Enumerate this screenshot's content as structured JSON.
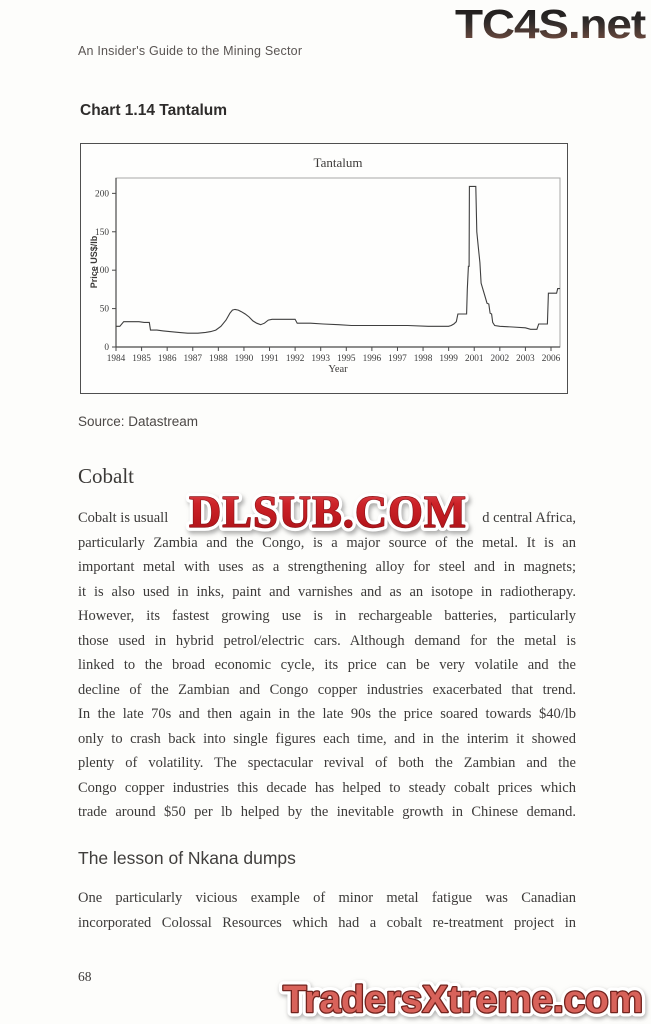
{
  "page": {
    "running_header": "An Insider's Guide to the Mining Sector",
    "page_number": "68"
  },
  "watermarks": {
    "top_right": "TC4S.net",
    "center": "DLSUB.COM",
    "bottom": "TradersXtreme.com"
  },
  "figure": {
    "caption": "Chart 1.14 Tantalum",
    "source": "Source: Datastream"
  },
  "chart_data": {
    "type": "line",
    "title": "Tantalum",
    "xlabel": "Year",
    "ylabel": "Price US$/lb",
    "x_tick_labels": [
      "1984",
      "1985",
      "1986",
      "1987",
      "1988",
      "1990",
      "1991",
      "1992",
      "1993",
      "1995",
      "1996",
      "1997",
      "1998",
      "1999",
      "2001",
      "2002",
      "2003",
      "2006"
    ],
    "y_ticks": [
      0,
      50,
      100,
      150,
      200
    ],
    "ylim": [
      0,
      220
    ],
    "grid": false,
    "legend": false,
    "line_color": "#3f3f3f",
    "x_axis_note": "Tick labels are evenly spaced on the axis; point x-values below are in tick-slot units (0 = 1984 tick, 17 = 2006 tick).",
    "series": [
      {
        "name": "Tantalum price (US$/lb)",
        "points": [
          [
            0,
            27
          ],
          [
            0.15,
            27
          ],
          [
            0.3,
            33
          ],
          [
            0.6,
            33
          ],
          [
            0.9,
            33
          ],
          [
            1.1,
            32
          ],
          [
            1.3,
            32
          ],
          [
            1.35,
            22
          ],
          [
            1.6,
            22
          ],
          [
            1.85,
            21
          ],
          [
            2.1,
            20
          ],
          [
            2.45,
            19
          ],
          [
            2.8,
            18
          ],
          [
            3.2,
            18
          ],
          [
            3.5,
            19
          ],
          [
            3.7,
            20
          ],
          [
            3.9,
            22
          ],
          [
            4.1,
            27
          ],
          [
            4.3,
            35
          ],
          [
            4.45,
            44
          ],
          [
            4.55,
            48
          ],
          [
            4.65,
            49
          ],
          [
            4.78,
            48
          ],
          [
            4.9,
            46
          ],
          [
            5.05,
            43
          ],
          [
            5.2,
            39
          ],
          [
            5.35,
            34
          ],
          [
            5.5,
            31
          ],
          [
            5.65,
            29
          ],
          [
            5.8,
            31
          ],
          [
            5.95,
            35
          ],
          [
            6.1,
            36
          ],
          [
            6.6,
            36
          ],
          [
            7.0,
            36
          ],
          [
            7.08,
            31
          ],
          [
            7.6,
            31
          ],
          [
            8.1,
            30
          ],
          [
            8.7,
            29
          ],
          [
            9.2,
            28
          ],
          [
            9.9,
            28
          ],
          [
            10.6,
            28
          ],
          [
            11.4,
            28
          ],
          [
            12.2,
            27
          ],
          [
            13.0,
            27
          ],
          [
            13.1,
            28
          ],
          [
            13.2,
            30
          ],
          [
            13.3,
            33
          ],
          [
            13.36,
            43
          ],
          [
            13.7,
            43
          ],
          [
            13.73,
            75
          ],
          [
            13.77,
            105
          ],
          [
            13.8,
            105
          ],
          [
            13.81,
            209
          ],
          [
            14.06,
            209
          ],
          [
            14.1,
            150
          ],
          [
            14.16,
            130
          ],
          [
            14.22,
            110
          ],
          [
            14.27,
            83
          ],
          [
            14.42,
            66
          ],
          [
            14.5,
            57
          ],
          [
            14.57,
            56
          ],
          [
            14.62,
            44
          ],
          [
            14.68,
            43
          ],
          [
            14.72,
            32
          ],
          [
            14.8,
            28
          ],
          [
            15.0,
            27
          ],
          [
            15.5,
            26
          ],
          [
            16.0,
            25
          ],
          [
            16.2,
            23
          ],
          [
            16.45,
            23
          ],
          [
            16.52,
            30
          ],
          [
            16.86,
            30
          ],
          [
            16.9,
            70
          ],
          [
            17.22,
            70
          ],
          [
            17.26,
            76
          ],
          [
            17.35,
            76
          ]
        ]
      }
    ]
  },
  "cobalt_section": {
    "heading": "Cobalt",
    "line1_left": "Cobalt is usuall",
    "line1_right": "d central Africa,",
    "lines": [
      "particularly Zambia and the Congo, is a major source of the metal. It is an",
      "important metal with uses as a strengthening alloy for steel and in magnets;",
      "it is also used in inks, paint and varnishes and as an isotope in radiotherapy.",
      "However, its fastest growing use is in rechargeable batteries, particularly",
      "those used in hybrid petrol/electric cars. Although demand for the metal is",
      "linked to the broad economic cycle, its price can be very volatile and the",
      "decline of the Zambian and Congo copper industries exacerbated that trend.",
      "In the late 70s and then again in the late 90s the price soared towards $40/lb",
      "only to crash back into single figures each time, and in the interim it showed",
      "plenty of volatility. The spectacular revival of both the Zambian and the",
      "Congo copper industries this decade has helped to steady cobalt prices which",
      "trade around $50 per lb helped by the inevitable growth in Chinese demand."
    ]
  },
  "nkana_section": {
    "heading": "The lesson of Nkana dumps",
    "lines": [
      "One particularly vicious example of minor metal fatigue was Canadian",
      "incorporated Colossal Resources which had a cobalt re-treatment project in"
    ]
  }
}
